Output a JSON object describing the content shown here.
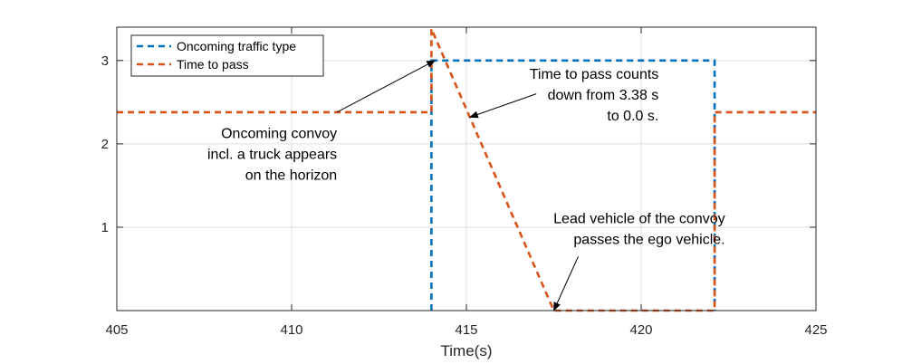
{
  "chart_data": {
    "type": "line",
    "title": "",
    "xlabel": "Time(s)",
    "ylabel": "",
    "xlim": [
      405,
      425
    ],
    "ylim": [
      0,
      3.4
    ],
    "xticks": [
      405,
      410,
      415,
      420,
      425
    ],
    "yticks": [
      1,
      2,
      3
    ],
    "grid": true,
    "legend_position": "top-left",
    "series": [
      {
        "name": "Oncoming traffic type",
        "color": "#0072BD",
        "style": "dashed",
        "points": [
          [
            414.0,
            0
          ],
          [
            414.0,
            3
          ],
          [
            422.1,
            3
          ],
          [
            422.1,
            0
          ]
        ]
      },
      {
        "name": "Time to pass",
        "color": "#D95319",
        "style": "dashed",
        "points": [
          [
            405,
            2.38
          ],
          [
            414.0,
            2.38
          ],
          [
            414.0,
            3.38
          ],
          [
            417.5,
            0
          ],
          [
            422.1,
            0
          ],
          [
            422.1,
            2.38
          ],
          [
            425,
            2.38
          ]
        ]
      }
    ],
    "annotations": [
      {
        "lines": [
          "Oncoming convoy",
          "incl. a truck appears",
          "on the horizon"
        ],
        "text_at": [
          411.3,
          2.07
        ],
        "align": "right",
        "arrow_from": [
          411.3,
          2.38
        ],
        "arrow_to": [
          414.1,
          3.0
        ]
      },
      {
        "lines": [
          "Time to pass counts",
          "down from 3.38 s",
          "to 0.0 s."
        ],
        "text_at": [
          420.5,
          2.78
        ],
        "align": "right",
        "arrow_from": [
          417.0,
          2.6
        ],
        "arrow_to": [
          415.1,
          2.32
        ]
      },
      {
        "lines": [
          "Lead vehicle of the convoy",
          "passes the ego vehicle."
        ],
        "text_at": [
          422.4,
          1.05
        ],
        "align": "right",
        "arrow_from": [
          418.2,
          0.65
        ],
        "arrow_to": [
          417.5,
          0.0
        ]
      }
    ]
  }
}
